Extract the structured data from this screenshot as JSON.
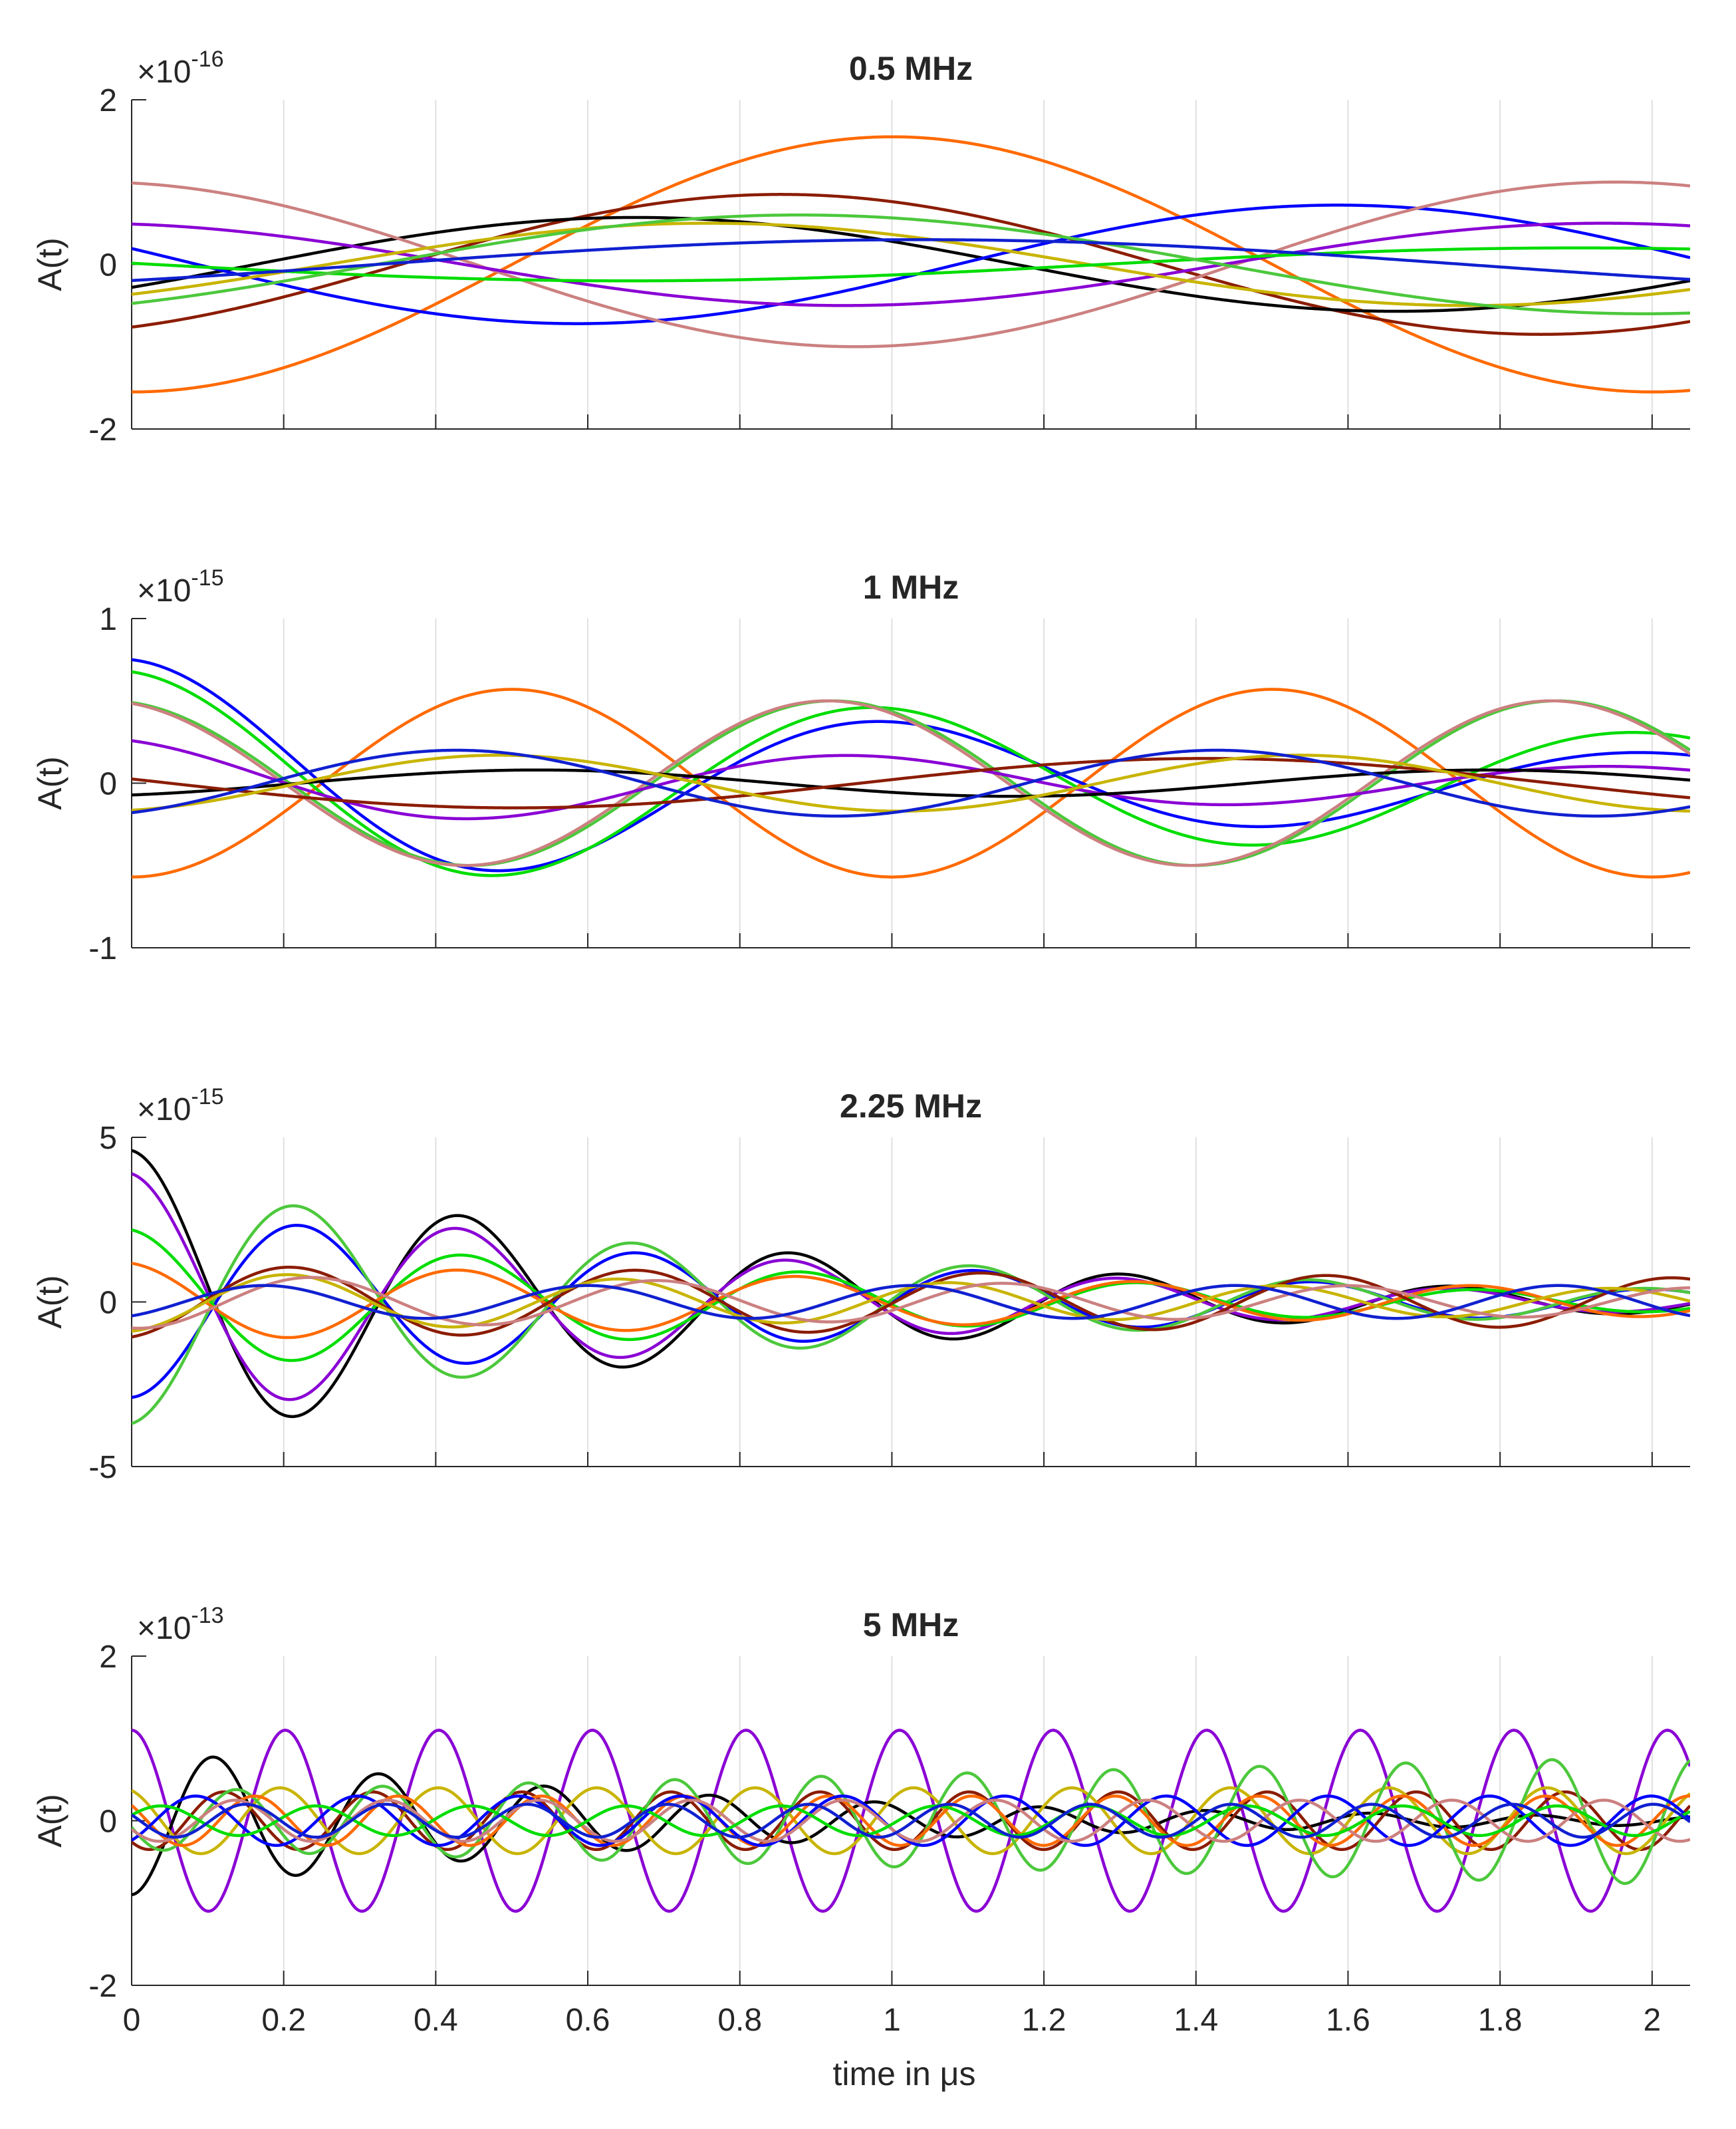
{
  "chart_data": [
    {
      "type": "line",
      "title": "0.5 MHz",
      "ylabel": "A(t)",
      "exponent_base": "×10",
      "exponent_power": "-16",
      "xlim": [
        0,
        2.05
      ],
      "ylim": [
        -2,
        2
      ],
      "yticks": [
        -2,
        0,
        2
      ],
      "grid": "vertical",
      "series": [
        {
          "name": "orange",
          "color": "#ff6a00",
          "amp": 1.55,
          "freq": 0.5,
          "phase": 3.14
        },
        {
          "name": "brown",
          "color": "#8b1c00",
          "amp": 0.85,
          "freq": 0.5,
          "phase": 3.6
        },
        {
          "name": "black",
          "color": "#000000",
          "amp": 0.57,
          "freq": 0.5,
          "phase": 4.2
        },
        {
          "name": "blue",
          "color": "#0000ff",
          "amp": 0.72,
          "freq": 0.5,
          "phase": 1.3
        },
        {
          "name": "rose",
          "color": "#cc8080",
          "amp": 1.0,
          "freq": 0.5,
          "phase": 0.15
        },
        {
          "name": "purple",
          "color": "#8a00d4",
          "amp": 0.5,
          "freq": 0.5,
          "phase": 0.2
        },
        {
          "name": "olive",
          "color": "#c8b400",
          "amp": 0.5,
          "freq": 0.5,
          "phase": 3.9
        },
        {
          "name": "green",
          "color": "#00dd00",
          "amp": 0.2,
          "freq": 0.4,
          "phase": 1.5
        },
        {
          "name": "light-green",
          "color": "#4cc83c",
          "amp": 0.6,
          "freq": 0.45,
          "phase": 3.8
        },
        {
          "name": "blue-2",
          "color": "#1020d0",
          "amp": 0.3,
          "freq": 0.35,
          "phase": 4.0
        }
      ]
    },
    {
      "type": "line",
      "title": "1 MHz",
      "ylabel": "A(t)",
      "exponent_base": "×10",
      "exponent_power": "-15",
      "xlim": [
        0,
        2.05
      ],
      "ylim": [
        -1,
        1
      ],
      "yticks": [
        -1,
        0,
        1
      ],
      "grid": "vertical",
      "series": [
        {
          "name": "orange",
          "color": "#ff6a00",
          "amp": 0.57,
          "freq": 1.0,
          "phase": 3.14
        },
        {
          "name": "blue",
          "color": "#0000ff",
          "amp": 0.75,
          "freq": 1.0,
          "phase": 0.0,
          "decay": 0.7
        },
        {
          "name": "green",
          "color": "#00dd00",
          "amp": 0.68,
          "freq": 1.0,
          "phase": 0.1,
          "decay": 0.4
        },
        {
          "name": "light-green",
          "color": "#4cc83c",
          "amp": 0.5,
          "freq": 1.05,
          "phase": 0.2
        },
        {
          "name": "rose",
          "color": "#cc8080",
          "amp": 0.5,
          "freq": 1.05,
          "phase": 0.25
        },
        {
          "name": "purple",
          "color": "#8a00d4",
          "amp": 0.27,
          "freq": 1.0,
          "phase": 0.3,
          "decay": 0.5
        },
        {
          "name": "black",
          "color": "#000000",
          "amp": 0.08,
          "freq": 0.8,
          "phase": 3.6
        },
        {
          "name": "brown",
          "color": "#8b1c00",
          "amp": 0.15,
          "freq": 0.55,
          "phase": 1.4
        },
        {
          "name": "olive",
          "color": "#c8b400",
          "amp": 0.17,
          "freq": 0.95,
          "phase": 3.4
        },
        {
          "name": "blue-2",
          "color": "#1020d0",
          "amp": 0.2,
          "freq": 1.0,
          "phase": 3.6
        }
      ]
    },
    {
      "type": "line",
      "title": "2.25 MHz",
      "ylabel": "A(t)",
      "exponent_base": "×10",
      "exponent_power": "-15",
      "xlim": [
        0,
        2.05
      ],
      "ylim": [
        -5,
        5
      ],
      "yticks": [
        -5,
        0,
        5
      ],
      "grid": "vertical",
      "series": [
        {
          "name": "black",
          "color": "#000000",
          "amp": 4.6,
          "freq": 2.3,
          "phase": 0.0,
          "decay": 1.3
        },
        {
          "name": "purple",
          "color": "#8a00d4",
          "amp": 3.9,
          "freq": 2.3,
          "phase": 0.05,
          "decay": 1.3
        },
        {
          "name": "blue",
          "color": "#0000ff",
          "amp": 2.9,
          "freq": 2.25,
          "phase": 3.14,
          "decay": 1.0
        },
        {
          "name": "light-green",
          "color": "#4cc83c",
          "amp": 3.7,
          "freq": 2.25,
          "phase": 3.2,
          "decay": 1.1
        },
        {
          "name": "green",
          "color": "#00dd00",
          "amp": 2.2,
          "freq": 2.25,
          "phase": 0.1,
          "decay": 1.0
        },
        {
          "name": "orange",
          "color": "#ff6a00",
          "amp": 1.2,
          "freq": 2.25,
          "phase": 0.2,
          "decay": 0.5
        },
        {
          "name": "brown",
          "color": "#8b1c00",
          "amp": 1.1,
          "freq": 2.2,
          "phase": 3.4,
          "decay": 0.2
        },
        {
          "name": "olive",
          "color": "#c8b400",
          "amp": 0.9,
          "freq": 2.3,
          "phase": 3.3,
          "decay": 0.4
        },
        {
          "name": "rose",
          "color": "#cc8080",
          "amp": 0.8,
          "freq": 2.2,
          "phase": 3.0,
          "decay": 0.3
        },
        {
          "name": "blue-2",
          "color": "#1020d0",
          "amp": 0.5,
          "freq": 2.35,
          "phase": 3.7,
          "decay": 0.0
        }
      ]
    },
    {
      "type": "line",
      "title": "5 MHz",
      "ylabel": "A(t)",
      "xlabel": "time in μs",
      "exponent_base": "×10",
      "exponent_power": "-13",
      "xlim": [
        0,
        2.05
      ],
      "ylim": [
        -2,
        2
      ],
      "yticks": [
        -2,
        0,
        2
      ],
      "xticks": [
        0,
        0.2,
        0.4,
        0.6,
        0.8,
        1,
        1.2,
        1.4,
        1.6,
        1.8,
        2
      ],
      "grid": "vertical",
      "series": [
        {
          "name": "purple",
          "color": "#8a00d4",
          "amp": 1.1,
          "freq": 4.95,
          "phase": 0.0
        },
        {
          "name": "black",
          "color": "#000000",
          "amp": 0.9,
          "freq": 4.6,
          "phase": 3.14,
          "decay": 1.4
        },
        {
          "name": "brown",
          "color": "#8b1c00",
          "amp": 0.35,
          "freq": 5.1,
          "phase": 2.4
        },
        {
          "name": "olive",
          "color": "#c8b400",
          "amp": 0.4,
          "freq": 4.8,
          "phase": 0.4
        },
        {
          "name": "light-green",
          "color": "#4cc83c",
          "amp": 0.35,
          "freq": 5.2,
          "phase": 1.8,
          "grow": 0.6
        },
        {
          "name": "orange",
          "color": "#ff6a00",
          "amp": 0.3,
          "freq": 5.3,
          "phase": 0.9
        },
        {
          "name": "blue",
          "color": "#0000ff",
          "amp": 0.3,
          "freq": 4.7,
          "phase": 3.8
        },
        {
          "name": "rose",
          "color": "#cc8080",
          "amp": 0.25,
          "freq": 5.0,
          "phase": 2.0
        },
        {
          "name": "green",
          "color": "#00dd00",
          "amp": 0.18,
          "freq": 4.9,
          "phase": 5.1
        },
        {
          "name": "blue-2",
          "color": "#1020d0",
          "amp": 0.2,
          "freq": 5.4,
          "phase": 1.2
        }
      ]
    }
  ]
}
